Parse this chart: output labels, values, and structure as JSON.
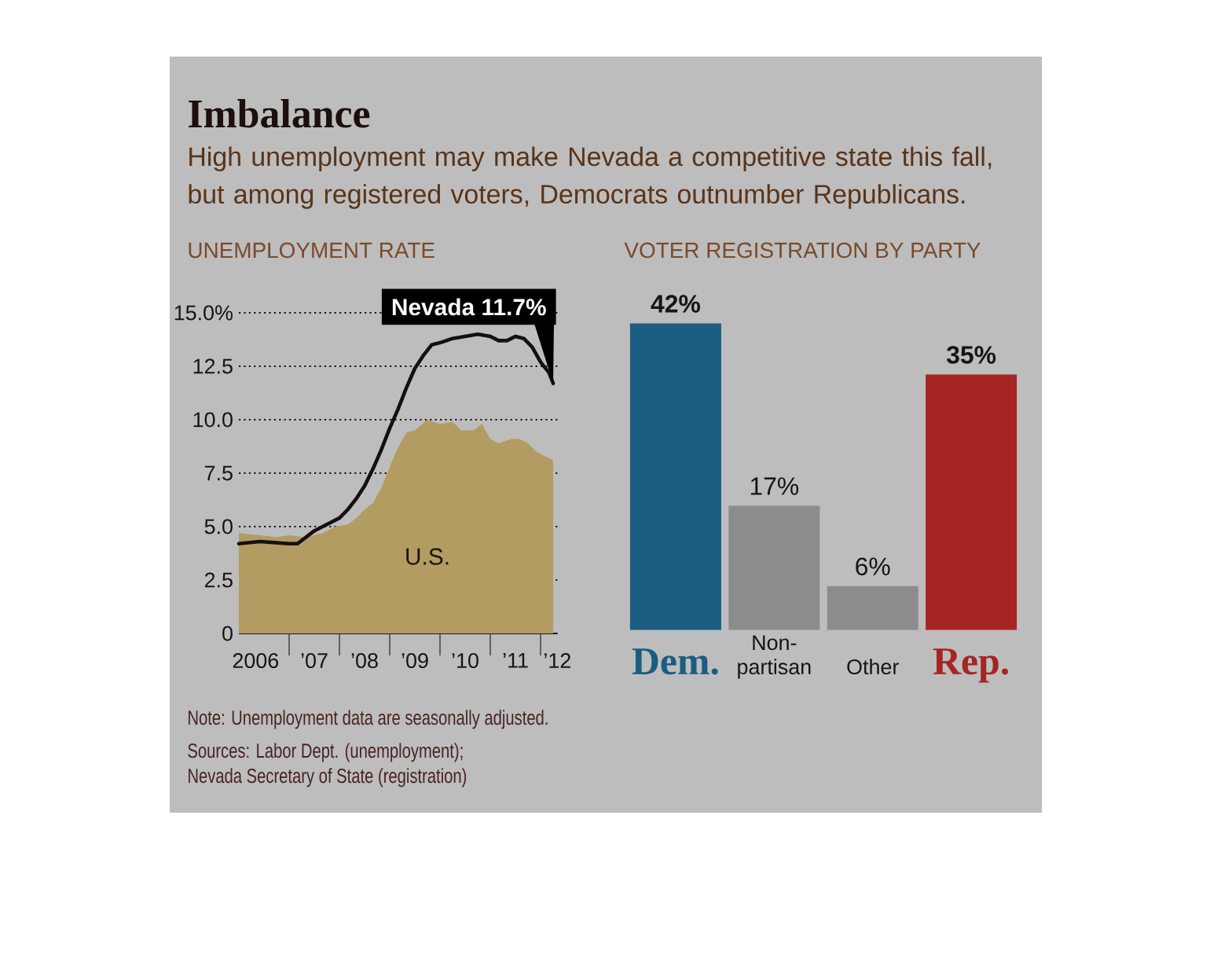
{
  "chart_data": [
    {
      "type": "other",
      "title": "Imbalance",
      "subtitle": "High unemployment may make Nevada a competitive state this fall, but among registered voters, Democrats outnumber Republicans.",
      "annotations": [
        "Note: Unemployment data are seasonally adjusted.",
        "Sources: Labor Dept. (unemployment);",
        "Nevada Secretary of State (registration)"
      ]
    },
    {
      "type": "line",
      "title": "UNEMPLOYMENT RATE",
      "xlim": [
        "2006-01",
        "2012-05"
      ],
      "ylim": [
        0,
        15
      ],
      "xticks": [
        {
          "value": "2006-05",
          "label": "2006"
        },
        {
          "value": "2007-01",
          "label": null
        },
        {
          "value": "2007-07",
          "label": "’07"
        },
        {
          "value": "2008-01",
          "label": null
        },
        {
          "value": "2008-07",
          "label": "’08"
        },
        {
          "value": "2009-01",
          "label": null
        },
        {
          "value": "2009-07",
          "label": "’09"
        },
        {
          "value": "2010-01",
          "label": null
        },
        {
          "value": "2010-07",
          "label": "’10"
        },
        {
          "value": "2011-01",
          "label": null
        },
        {
          "value": "2011-07",
          "label": "’11"
        },
        {
          "value": "2012-01",
          "label": null
        },
        {
          "value": "2012-05",
          "label": "’12"
        }
      ],
      "yticks": [
        0,
        2.5,
        {
          "value": 5,
          "label": "5.0"
        },
        7.5,
        {
          "value": 10,
          "label": "10.0"
        },
        12.5,
        {
          "value": 15,
          "label": "15.0%"
        }
      ],
      "grid": "y",
      "series": [
        {
          "name": "U.S.",
          "type": "area",
          "color": "#b39c62",
          "x": [
            "2006-01",
            "2006-06",
            "2006-10",
            "2007-01",
            "2007-05",
            "2007-09",
            "2007-12",
            "2008-03",
            "2008-05",
            "2008-07",
            "2008-09",
            "2008-11",
            "2009-01",
            "2009-03",
            "2009-05",
            "2009-07",
            "2009-10",
            "2010-01",
            "2010-04",
            "2010-06",
            "2010-09",
            "2010-11",
            "2011-01",
            "2011-03",
            "2011-06",
            "2011-08",
            "2011-10",
            "2011-12",
            "2012-02",
            "2012-04"
          ],
          "values": [
            4.7,
            4.6,
            4.5,
            4.6,
            4.5,
            4.7,
            5.0,
            5.1,
            5.4,
            5.8,
            6.1,
            6.8,
            7.8,
            8.7,
            9.4,
            9.5,
            10.0,
            9.8,
            9.9,
            9.5,
            9.5,
            9.8,
            9.1,
            8.9,
            9.1,
            9.1,
            8.9,
            8.5,
            8.3,
            8.1
          ]
        },
        {
          "type": "line",
          "color": "#151010",
          "x": [
            "2006-01",
            "2006-06",
            "2007-01",
            "2007-03",
            "2007-07",
            "2007-10",
            "2008-01",
            "2008-03",
            "2008-05",
            "2008-07",
            "2008-09",
            "2008-11",
            "2009-01",
            "2009-03",
            "2009-05",
            "2009-07",
            "2009-09",
            "2009-11",
            "2010-01",
            "2010-04",
            "2010-07",
            "2010-10",
            "2011-01",
            "2011-03",
            "2011-05",
            "2011-07",
            "2011-09",
            "2011-11",
            "2012-01",
            "2012-03",
            "2012-04"
          ],
          "values": [
            4.2,
            4.3,
            4.2,
            4.2,
            4.8,
            5.1,
            5.4,
            5.8,
            6.3,
            6.9,
            7.7,
            8.6,
            9.6,
            10.5,
            11.5,
            12.4,
            13.0,
            13.5,
            13.6,
            13.8,
            13.9,
            14.0,
            13.9,
            13.7,
            13.7,
            13.9,
            13.8,
            13.4,
            12.7,
            12.2,
            11.7
          ]
        }
      ],
      "annotations": [
        {
          "text": "Nevada 11.7%",
          "x": "2012-04",
          "y": 11.7
        }
      ]
    },
    {
      "type": "bar",
      "title": "VOTER REGISTRATION BY PARTY",
      "categories": [
        "Dem.",
        "Non-partisan",
        "Other",
        "Rep."
      ],
      "values": [
        42,
        17,
        6,
        35
      ],
      "colors": [
        "#1b5d82",
        "#8c8c8c",
        "#8c8c8c",
        "#a52523"
      ],
      "value_labels": [
        "42%",
        "17%",
        "6%",
        "35%"
      ]
    }
  ]
}
